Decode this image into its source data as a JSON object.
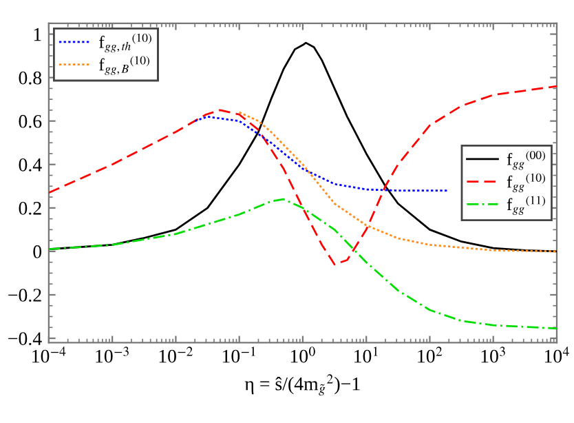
{
  "chart_data": {
    "type": "line",
    "xlabel": "η = ŝ/(4m$_{g̃}$$^{2}$)−1",
    "log": "x",
    "grid": false,
    "legend": [
      "right",
      "top left"
    ],
    "xlim": [
      0.0001,
      10000
    ],
    "xticks": [
      {
        "value": 0.0001,
        "label": "10$^{−4}$"
      },
      {
        "value": 0.001,
        "label": "10$^{−3}$"
      },
      {
        "value": 0.01,
        "label": "10$^{−2}$"
      },
      {
        "value": 0.1,
        "label": "10$^{−1}$"
      },
      {
        "value": 1,
        "label": "10$^{0}$"
      },
      {
        "value": 10,
        "label": "10$^{1}$"
      },
      {
        "value": 100,
        "label": "10$^{2}$"
      },
      {
        "value": 1000,
        "label": "10$^{3}$"
      },
      {
        "value": 10000,
        "label": "10$^{4}$"
      }
    ],
    "ylim": [
      -0.42,
      1.05
    ],
    "yticks": [
      {
        "value": -0.4,
        "label": "−0.4"
      },
      {
        "value": -0.2,
        "label": "−0.2"
      },
      0,
      0.2,
      0.4,
      0.6,
      0.8,
      1
    ],
    "series": [
      {
        "name": "f$_{gg}$$^{(00)}$",
        "color": "#000000",
        "line_style": "solid",
        "x": [
          0.0001,
          0.001,
          0.003,
          0.01,
          0.0316,
          0.1,
          0.2,
          0.316,
          0.5,
          0.75,
          1,
          1.12,
          1.5,
          2,
          3.16,
          5,
          10,
          20,
          31.6,
          100,
          316,
          1000,
          3162,
          10000
        ],
        "values": [
          0.01,
          0.03,
          0.06,
          0.1,
          0.2,
          0.4,
          0.55,
          0.7,
          0.84,
          0.93,
          0.95,
          0.96,
          0.94,
          0.88,
          0.75,
          0.62,
          0.45,
          0.3,
          0.22,
          0.1,
          0.045,
          0.015,
          0.005,
          0
        ]
      },
      {
        "name": "f$_{gg}$$^{(10)}$",
        "color": "#ff0000",
        "line_style": "dashed",
        "x": [
          0.0001,
          0.001,
          0.01,
          0.03,
          0.05,
          0.1,
          0.2,
          0.316,
          0.5,
          1,
          2,
          3.16,
          5,
          10,
          20,
          31.6,
          100,
          316,
          1000,
          3162,
          10000
        ],
        "values": [
          0.27,
          0.4,
          0.55,
          0.63,
          0.65,
          0.63,
          0.56,
          0.47,
          0.38,
          0.2,
          0.03,
          -0.06,
          -0.04,
          0.1,
          0.3,
          0.4,
          0.58,
          0.67,
          0.72,
          0.74,
          0.76
        ]
      },
      {
        "name": "f$_{gg}$$^{(11)}$",
        "color": "#00dd00",
        "line_style": "dashdot",
        "x": [
          0.0001,
          0.001,
          0.01,
          0.1,
          0.316,
          0.5,
          1,
          3.16,
          10,
          31.6,
          100,
          316,
          1000,
          10000
        ],
        "values": [
          0.01,
          0.03,
          0.08,
          0.17,
          0.23,
          0.24,
          0.2,
          0.1,
          -0.05,
          -0.18,
          -0.27,
          -0.32,
          -0.34,
          -0.355
        ]
      },
      {
        "name": "f$_{gg,th}$$^{(10)}$",
        "color": "#0000ff",
        "line_style": "dotted",
        "x": [
          0.02,
          0.0316,
          0.1,
          0.316,
          1,
          3.16,
          10,
          31.6,
          200
        ],
        "values": [
          0.6,
          0.62,
          0.6,
          0.5,
          0.38,
          0.31,
          0.285,
          0.28,
          0.28
        ]
      },
      {
        "name": "f$_{gg,B}$$^{(10)}$",
        "color": "#ff8c1a",
        "line_style": "dotted",
        "x": [
          0.1,
          0.2,
          0.316,
          1,
          3.16,
          10,
          31.6,
          100,
          1000,
          10000
        ],
        "values": [
          0.64,
          0.6,
          0.55,
          0.4,
          0.22,
          0.12,
          0.06,
          0.03,
          0.005,
          0
        ]
      }
    ]
  }
}
